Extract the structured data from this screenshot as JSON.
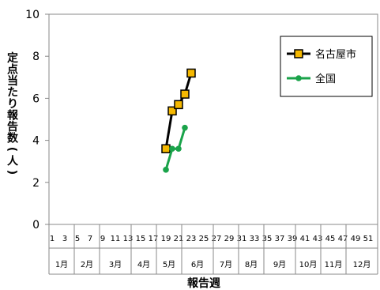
{
  "chart_data": {
    "type": "line",
    "ylabel": "定点当たり報告数(人)",
    "xlabel": "報告週",
    "ylim": [
      0,
      10
    ],
    "yticks": [
      0,
      2,
      4,
      6,
      8,
      10
    ],
    "xlim": [
      1,
      52
    ],
    "week_ticks": [
      "1",
      "3",
      "5",
      "7",
      "9",
      "11",
      "13",
      "15",
      "17",
      "19",
      "21",
      "23",
      "25",
      "27",
      "29",
      "31",
      "33",
      "35",
      "37",
      "39",
      "41",
      "43",
      "45",
      "47",
      "49",
      "51"
    ],
    "months": [
      {
        "label": "1月",
        "start": 1,
        "end": 5
      },
      {
        "label": "2月",
        "start": 5,
        "end": 9
      },
      {
        "label": "3月",
        "start": 9,
        "end": 14
      },
      {
        "label": "4月",
        "start": 14,
        "end": 18
      },
      {
        "label": "5月",
        "start": 18,
        "end": 22
      },
      {
        "label": "6月",
        "start": 22,
        "end": 27
      },
      {
        "label": "7月",
        "start": 27,
        "end": 31
      },
      {
        "label": "8月",
        "start": 31,
        "end": 35
      },
      {
        "label": "9月",
        "start": 35,
        "end": 40
      },
      {
        "label": "10月",
        "start": 40,
        "end": 44
      },
      {
        "label": "11月",
        "start": 44,
        "end": 48
      },
      {
        "label": "12月",
        "start": 48,
        "end": 53
      }
    ],
    "grid": false,
    "legend": "top-right",
    "series": [
      {
        "name": "名古屋市",
        "color": "#000000",
        "marker": "square",
        "marker_fill": "#f5b800",
        "x": [
          19,
          20,
          21,
          22,
          23
        ],
        "y": [
          3.6,
          5.4,
          5.7,
          6.2,
          7.2
        ]
      },
      {
        "name": "全国",
        "color": "#1aa34a",
        "marker": "circle",
        "x": [
          19,
          20,
          21,
          22
        ],
        "y": [
          2.6,
          3.6,
          3.6,
          4.6
        ]
      }
    ]
  }
}
